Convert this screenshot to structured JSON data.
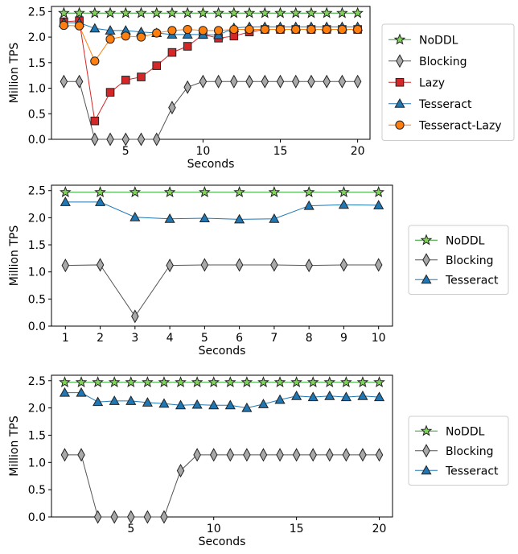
{
  "chart_data": [
    {
      "type": "line",
      "xlabel": "Seconds",
      "ylabel": "Million TPS",
      "xlim": [
        0.2,
        20.8
      ],
      "ylim": [
        0,
        2.6
      ],
      "xticks": [
        5,
        10,
        15,
        20
      ],
      "yticks": [
        0.0,
        0.5,
        1.0,
        1.5,
        2.0,
        2.5
      ],
      "legend_position": "right-outside",
      "series": [
        {
          "name": "NoDDL",
          "marker": "star",
          "color": "#2ca02c",
          "fill": "#7fd35a",
          "x": [
            1,
            2,
            3,
            4,
            5,
            6,
            7,
            8,
            9,
            10,
            11,
            12,
            13,
            14,
            15,
            16,
            17,
            18,
            19,
            20
          ],
          "y": [
            2.47,
            2.47,
            2.47,
            2.47,
            2.47,
            2.47,
            2.47,
            2.47,
            2.47,
            2.47,
            2.47,
            2.47,
            2.47,
            2.47,
            2.47,
            2.47,
            2.47,
            2.47,
            2.47,
            2.47
          ]
        },
        {
          "name": "Blocking",
          "marker": "diamond",
          "color": "#555555",
          "fill": "#a9a9a9",
          "x": [
            1,
            2,
            3,
            4,
            5,
            6,
            7,
            8,
            9,
            10,
            11,
            12,
            13,
            14,
            15,
            16,
            17,
            18,
            19,
            20
          ],
          "y": [
            1.13,
            1.13,
            0.0,
            0.0,
            0.0,
            0.0,
            0.0,
            0.62,
            1.02,
            1.13,
            1.13,
            1.13,
            1.13,
            1.13,
            1.13,
            1.13,
            1.13,
            1.13,
            1.13,
            1.13
          ]
        },
        {
          "name": "Lazy",
          "marker": "square",
          "color": "#d62728",
          "fill": "#d62728",
          "x": [
            1,
            2,
            3,
            4,
            5,
            6,
            7,
            8,
            9,
            10,
            11,
            12,
            13,
            14,
            15,
            16,
            17,
            18,
            19,
            20
          ],
          "y": [
            2.3,
            2.32,
            0.36,
            0.92,
            1.16,
            1.22,
            1.44,
            1.7,
            1.82,
            2.05,
            1.98,
            2.02,
            2.1,
            2.15,
            2.15,
            2.15,
            2.15,
            2.15,
            2.15,
            2.15
          ]
        },
        {
          "name": "Tesseract",
          "marker": "triangle",
          "color": "#1f77b4",
          "fill": "#1f77b4",
          "x": [
            1,
            2,
            3,
            4,
            5,
            6,
            7,
            8,
            9,
            10,
            11,
            12,
            13,
            14,
            15,
            16,
            17,
            18,
            19,
            20
          ],
          "y": [
            2.28,
            2.28,
            2.17,
            2.13,
            2.13,
            2.1,
            2.08,
            2.05,
            2.05,
            2.05,
            2.04,
            2.18,
            2.2,
            2.2,
            2.2,
            2.2,
            2.2,
            2.2,
            2.2,
            2.2
          ]
        },
        {
          "name": "Tesseract-Lazy",
          "marker": "circle",
          "color": "#ff7f0e",
          "fill": "#ff7f0e",
          "x": [
            1,
            2,
            3,
            4,
            5,
            6,
            7,
            8,
            9,
            10,
            11,
            12,
            13,
            14,
            15,
            16,
            17,
            18,
            19,
            20
          ],
          "y": [
            2.23,
            2.22,
            1.53,
            1.96,
            2.02,
            2.0,
            2.08,
            2.13,
            2.15,
            2.13,
            2.13,
            2.15,
            2.15,
            2.15,
            2.15,
            2.15,
            2.15,
            2.15,
            2.15,
            2.15
          ]
        }
      ]
    },
    {
      "type": "line",
      "xlabel": "Seconds",
      "ylabel": "Million TPS",
      "xlim": [
        0.6,
        10.4
      ],
      "ylim": [
        0,
        2.6
      ],
      "xticks": [
        1,
        2,
        3,
        4,
        5,
        6,
        7,
        8,
        9,
        10
      ],
      "yticks": [
        0.0,
        0.5,
        1.0,
        1.5,
        2.0,
        2.5
      ],
      "legend_position": "right-outside",
      "series": [
        {
          "name": "NoDDL",
          "marker": "star",
          "color": "#2ca02c",
          "fill": "#7fd35a",
          "x": [
            1,
            2,
            3,
            4,
            5,
            6,
            7,
            8,
            9,
            10
          ],
          "y": [
            2.47,
            2.47,
            2.47,
            2.47,
            2.47,
            2.47,
            2.47,
            2.47,
            2.47,
            2.47
          ]
        },
        {
          "name": "Blocking",
          "marker": "diamond",
          "color": "#555555",
          "fill": "#a9a9a9",
          "x": [
            1,
            2,
            3,
            4,
            5,
            6,
            7,
            8,
            9,
            10
          ],
          "y": [
            1.12,
            1.13,
            0.18,
            1.12,
            1.13,
            1.13,
            1.13,
            1.12,
            1.13,
            1.13
          ]
        },
        {
          "name": "Tesseract",
          "marker": "triangle",
          "color": "#1f77b4",
          "fill": "#1f77b4",
          "x": [
            1,
            2,
            3,
            4,
            5,
            6,
            7,
            8,
            9,
            10
          ],
          "y": [
            2.29,
            2.29,
            2.01,
            1.98,
            1.99,
            1.97,
            1.98,
            2.22,
            2.24,
            2.23
          ]
        }
      ]
    },
    {
      "type": "line",
      "xlabel": "Seconds",
      "ylabel": "Million TPS",
      "xlim": [
        0.2,
        20.8
      ],
      "ylim": [
        0,
        2.6
      ],
      "xticks": [
        5,
        10,
        15,
        20
      ],
      "yticks": [
        0.0,
        0.5,
        1.0,
        1.5,
        2.0,
        2.5
      ],
      "legend_position": "right-outside",
      "series": [
        {
          "name": "NoDDL",
          "marker": "star",
          "color": "#2ca02c",
          "fill": "#7fd35a",
          "x": [
            1,
            2,
            3,
            4,
            5,
            6,
            7,
            8,
            9,
            10,
            11,
            12,
            13,
            14,
            15,
            16,
            17,
            18,
            19,
            20
          ],
          "y": [
            2.47,
            2.47,
            2.47,
            2.47,
            2.47,
            2.47,
            2.47,
            2.47,
            2.47,
            2.47,
            2.47,
            2.47,
            2.47,
            2.47,
            2.47,
            2.47,
            2.47,
            2.47,
            2.47,
            2.47
          ]
        },
        {
          "name": "Blocking",
          "marker": "diamond",
          "color": "#555555",
          "fill": "#a9a9a9",
          "x": [
            1,
            2,
            3,
            4,
            5,
            6,
            7,
            8,
            9,
            10,
            11,
            12,
            13,
            14,
            15,
            16,
            17,
            18,
            19,
            20
          ],
          "y": [
            1.14,
            1.14,
            0.0,
            0.0,
            0.0,
            0.0,
            0.0,
            0.85,
            1.14,
            1.14,
            1.14,
            1.14,
            1.14,
            1.14,
            1.14,
            1.14,
            1.14,
            1.14,
            1.14,
            1.14
          ]
        },
        {
          "name": "Tesseract",
          "marker": "triangle",
          "color": "#1f77b4",
          "fill": "#1f77b4",
          "x": [
            1,
            2,
            3,
            4,
            5,
            6,
            7,
            8,
            9,
            10,
            11,
            12,
            13,
            14,
            15,
            16,
            17,
            18,
            19,
            20
          ],
          "y": [
            2.28,
            2.28,
            2.11,
            2.13,
            2.13,
            2.1,
            2.08,
            2.05,
            2.06,
            2.05,
            2.05,
            2.0,
            2.07,
            2.15,
            2.22,
            2.2,
            2.22,
            2.2,
            2.22,
            2.2
          ]
        }
      ]
    }
  ]
}
